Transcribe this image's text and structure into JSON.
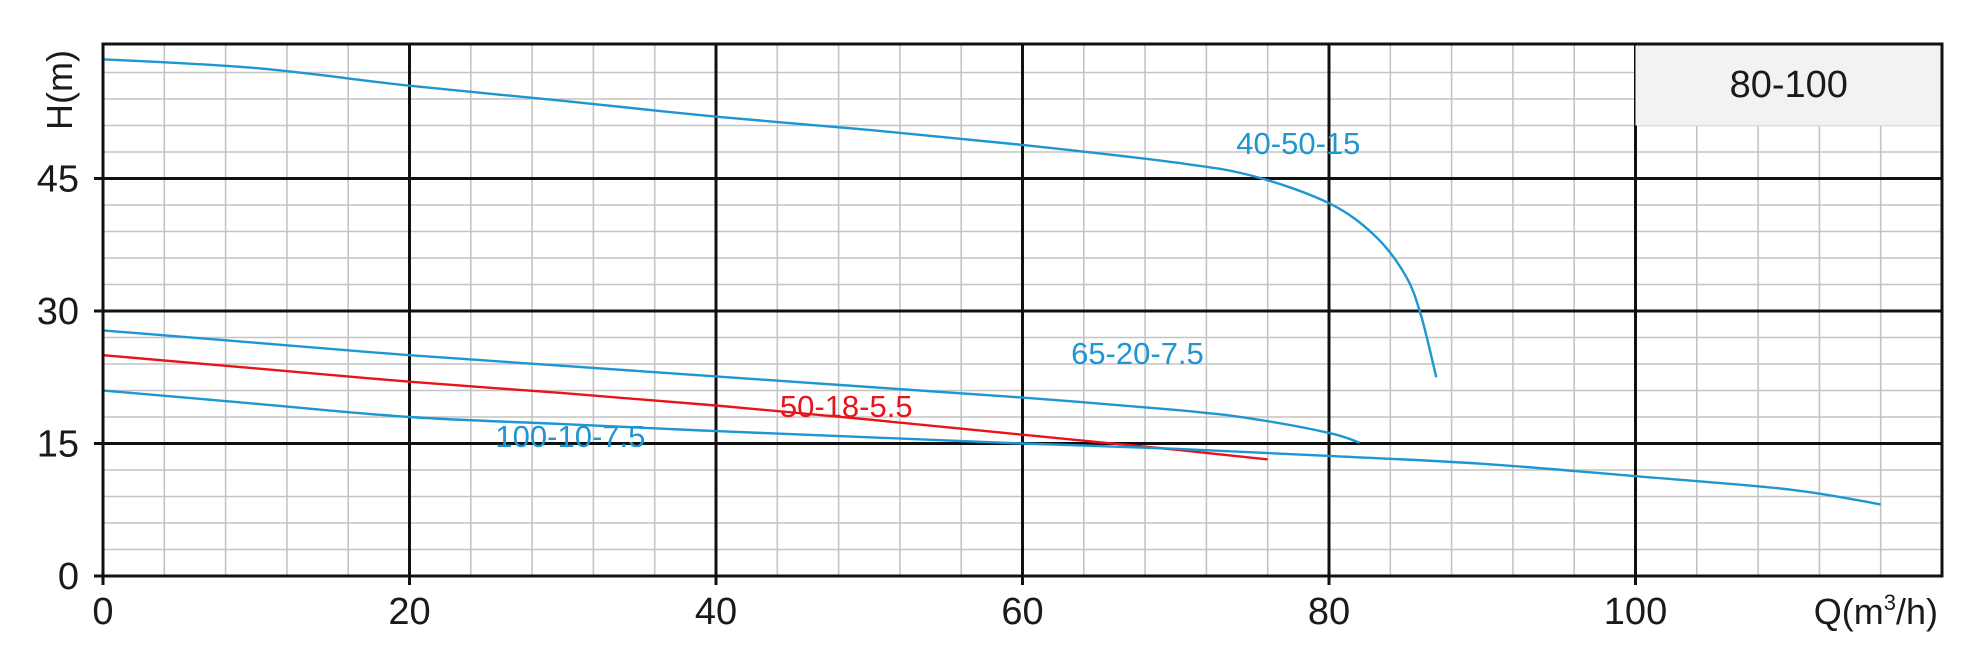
{
  "chart_data": {
    "type": "line",
    "title": "",
    "model_label": "80-100",
    "xlabel": {
      "main": "Q(m",
      "superscript": "3",
      "tail": "/h)"
    },
    "ylabel": "H(m)",
    "xlim": [
      0,
      120
    ],
    "ylim": [
      0,
      60
    ],
    "x_ticks": [
      {
        "value": 0,
        "label": "0"
      },
      {
        "value": 20,
        "label": "20"
      },
      {
        "value": 40,
        "label": "40"
      },
      {
        "value": 60,
        "label": "60"
      },
      {
        "value": 80,
        "label": "80"
      },
      {
        "value": 100,
        "label": "100"
      }
    ],
    "y_ticks": [
      {
        "value": 0,
        "label": "0"
      },
      {
        "value": 15,
        "label": "15"
      },
      {
        "value": 30,
        "label": "30"
      },
      {
        "value": 45,
        "label": "45"
      }
    ],
    "grid": true,
    "grid_major_x_step": 20,
    "grid_minor_x_step": 4,
    "grid_major_y_step": 15,
    "grid_minor_y_step": 3,
    "colors": {
      "major_grid": "#111111",
      "minor_grid": "#c4c4c4",
      "axis": "#111111",
      "blue_curve": "#1e96d2",
      "red_curve": "#e8141b",
      "model_box_bg": "#f2f2f2"
    },
    "series": [
      {
        "name": "40-50-15",
        "color": "#1e96d2",
        "points": [
          [
            0,
            58.5
          ],
          [
            10,
            57.5
          ],
          [
            20,
            55.5
          ],
          [
            30,
            53.8
          ],
          [
            40,
            52.0
          ],
          [
            50,
            50.5
          ],
          [
            60,
            48.8
          ],
          [
            70,
            46.8
          ],
          [
            75,
            45.3
          ],
          [
            80,
            42.2
          ],
          [
            83,
            38.5
          ],
          [
            85,
            34.0
          ],
          [
            86,
            29.5
          ],
          [
            87,
            22.5
          ]
        ],
        "label_at": [
          78,
          47.8
        ]
      },
      {
        "name": "65-20-7.5",
        "color": "#1e96d2",
        "points": [
          [
            0,
            27.8
          ],
          [
            10,
            26.4
          ],
          [
            20,
            25.0
          ],
          [
            30,
            23.8
          ],
          [
            40,
            22.6
          ],
          [
            50,
            21.4
          ],
          [
            60,
            20.2
          ],
          [
            70,
            18.8
          ],
          [
            75,
            17.8
          ],
          [
            80,
            16.2
          ],
          [
            82,
            15.1
          ]
        ],
        "label_at": [
          67.5,
          24.0
        ]
      },
      {
        "name": "50-18-5.5",
        "color": "#e8141b",
        "points": [
          [
            0,
            25.0
          ],
          [
            10,
            23.5
          ],
          [
            20,
            22.0
          ],
          [
            30,
            20.7
          ],
          [
            40,
            19.3
          ],
          [
            50,
            17.7
          ],
          [
            60,
            16.0
          ],
          [
            70,
            14.3
          ],
          [
            76,
            13.2
          ]
        ],
        "label_at": [
          48.5,
          18.0
        ]
      },
      {
        "name": "100-10-7.5",
        "color": "#1e96d2",
        "points": [
          [
            0,
            21.0
          ],
          [
            10,
            19.5
          ],
          [
            20,
            18.0
          ],
          [
            30,
            17.2
          ],
          [
            40,
            16.4
          ],
          [
            50,
            15.7
          ],
          [
            60,
            15.0
          ],
          [
            70,
            14.4
          ],
          [
            80,
            13.6
          ],
          [
            90,
            12.7
          ],
          [
            100,
            11.3
          ],
          [
            110,
            9.8
          ],
          [
            116,
            8.1
          ]
        ],
        "label_at": [
          30.5,
          14.6
        ]
      }
    ]
  }
}
